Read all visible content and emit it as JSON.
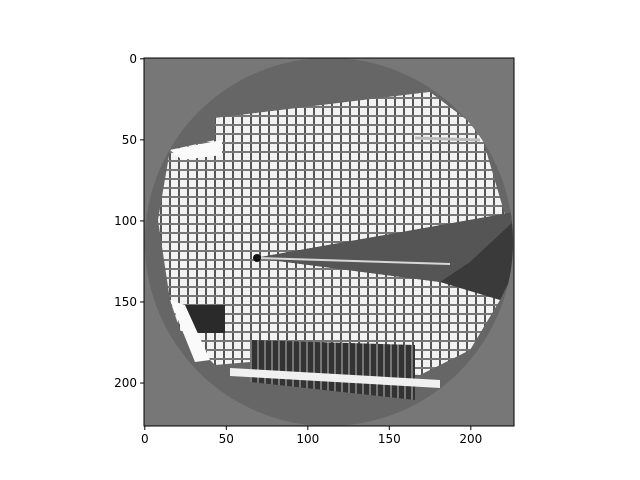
{
  "chart_data": {
    "type": "heatmap",
    "title": "",
    "xlabel": "",
    "ylabel": "",
    "colormap": "gray",
    "image_shape": [
      227,
      227
    ],
    "xlim": [
      -0.5,
      226.5
    ],
    "ylim": [
      226.5,
      -0.5
    ],
    "y_axis_inverted": true,
    "grid": false,
    "legend": "none",
    "x_ticks": [
      0,
      50,
      100,
      150,
      200
    ],
    "y_ticks": [
      0,
      50,
      100,
      150,
      200
    ],
    "content": {
      "circular_mask_center": [
        113,
        113
      ],
      "circular_mask_radius": 113,
      "background_gray_level": 0.46,
      "subject": "grayscale photo of a skyscraper with a spire, viewed from below and rotated"
    }
  },
  "colors": {
    "background": "#777777",
    "frame": "#000000"
  }
}
